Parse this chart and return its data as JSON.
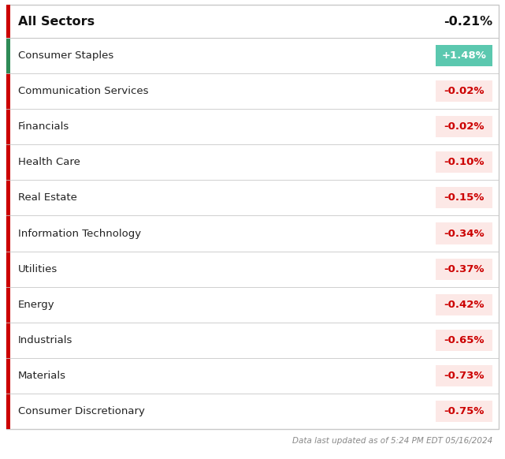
{
  "header_label": "All Sectors",
  "header_value": "-0.21%",
  "sectors": [
    {
      "name": "Consumer Staples",
      "value": "+1.48%",
      "positive": true
    },
    {
      "name": "Communication Services",
      "value": "-0.02%",
      "positive": false
    },
    {
      "name": "Financials",
      "value": "-0.02%",
      "positive": false
    },
    {
      "name": "Health Care",
      "value": "-0.10%",
      "positive": false
    },
    {
      "name": "Real Estate",
      "value": "-0.15%",
      "positive": false
    },
    {
      "name": "Information Technology",
      "value": "-0.34%",
      "positive": false
    },
    {
      "name": "Utilities",
      "value": "-0.37%",
      "positive": false
    },
    {
      "name": "Energy",
      "value": "-0.42%",
      "positive": false
    },
    {
      "name": "Industrials",
      "value": "-0.65%",
      "positive": false
    },
    {
      "name": "Materials",
      "value": "-0.73%",
      "positive": false
    },
    {
      "name": "Consumer Discretionary",
      "value": "-0.75%",
      "positive": false
    }
  ],
  "footer_text": "Data last updated as of 5:24 PM EDT 05/16/2024",
  "bg_color": "#ffffff",
  "border_color": "#c8c8c8",
  "positive_bg": "#5bc8af",
  "positive_text": "#ffffff",
  "negative_bg": "#fce8e6",
  "negative_text": "#cc0000",
  "header_accent_negative": "#cc0000",
  "row_left_bar_negative": "#cc0000",
  "row_left_bar_positive": "#2e8b57",
  "header_font_size": 11.5,
  "row_font_size": 9.5,
  "footer_font_size": 7.5
}
